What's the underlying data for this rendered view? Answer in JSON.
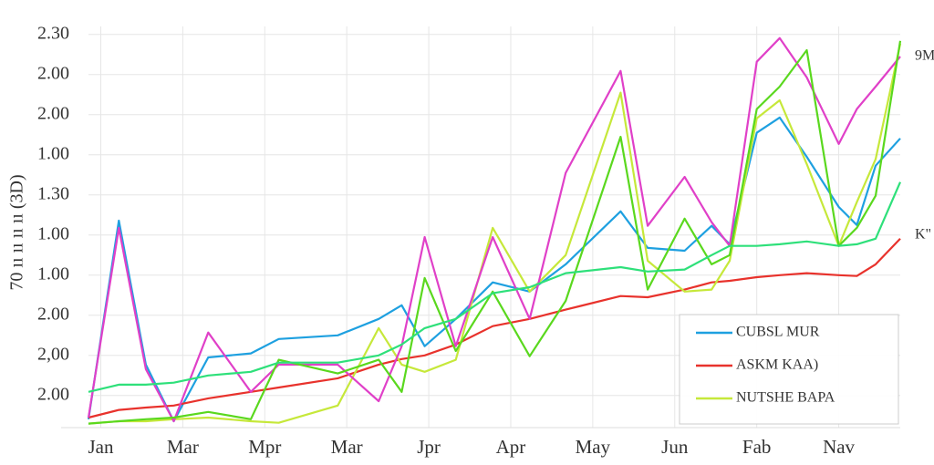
{
  "chart_data": {
    "type": "line",
    "y_label": "70 ıı ıı ıı ıı (3D)",
    "annotations": [
      "9M",
      "K\""
    ],
    "categories": [
      "Jan",
      "Mar",
      "Mpr",
      "Mar",
      "Jpr",
      "Apr",
      "May",
      "Jun",
      "Fab",
      "Nav"
    ],
    "xlim": [
      -0.15,
      9.75
    ],
    "x": [
      -0.15,
      0.22,
      0.55,
      0.89,
      1.31,
      1.83,
      2.17,
      2.89,
      3.39,
      3.67,
      3.95,
      4.33,
      4.78,
      5.23,
      5.67,
      6.34,
      6.67,
      7.12,
      7.45,
      7.67,
      8.0,
      8.28,
      8.61,
      9.0,
      9.22,
      9.45,
      9.75
    ],
    "ylim": [
      -0.8,
      9.2
    ],
    "yticks": [
      {
        "value": 9,
        "label": "2.30"
      },
      {
        "value": 8,
        "label": "2.00"
      },
      {
        "value": 7,
        "label": "2.00"
      },
      {
        "value": 6,
        "label": "1.00"
      },
      {
        "value": 5,
        "label": "1.30"
      },
      {
        "value": 4,
        "label": "1.00"
      },
      {
        "value": 3,
        "label": "1.00"
      },
      {
        "value": 2,
        "label": "2.00"
      },
      {
        "value": 1,
        "label": "2,00"
      },
      {
        "value": 0,
        "label": "2.00"
      }
    ],
    "grid": true,
    "legend": "lower right",
    "series": [
      {
        "name": "CUBSL MUR",
        "color": "#1ea0e0",
        "values": [
          -0.59,
          4.36,
          0.77,
          -0.64,
          0.95,
          1.05,
          1.41,
          1.5,
          1.91,
          2.25,
          1.23,
          1.91,
          2.82,
          2.59,
          3.27,
          4.59,
          3.68,
          3.61,
          4.23,
          3.77,
          6.55,
          6.93,
          5.95,
          4.7,
          4.25,
          5.73,
          6.41
        ]
      },
      {
        "name": "ASKM KAA)",
        "color": "#e8322c",
        "values": [
          -0.55,
          -0.36,
          -0.3,
          -0.25,
          -0.07,
          0.09,
          0.2,
          0.43,
          0.77,
          0.91,
          1.0,
          1.27,
          1.73,
          1.91,
          2.14,
          2.48,
          2.45,
          2.64,
          2.82,
          2.86,
          2.95,
          3.0,
          3.05,
          3.0,
          2.98,
          3.27,
          3.91
        ]
      },
      {
        "name": "NUTSHE BAPA",
        "color": "#c6e83a",
        "values": [
          -0.7,
          -0.64,
          -0.64,
          -0.59,
          -0.55,
          -0.64,
          -0.68,
          -0.25,
          1.68,
          0.77,
          0.59,
          0.89,
          4.18,
          2.59,
          3.5,
          7.55,
          3.36,
          2.59,
          2.64,
          3.36,
          6.91,
          7.36,
          5.77,
          3.73,
          4.82,
          5.89,
          8.77
        ]
      },
      {
        "color": "#e040c8",
        "values": [
          -0.55,
          4.18,
          0.66,
          -0.64,
          1.57,
          0.09,
          0.77,
          0.77,
          -0.14,
          1.23,
          3.95,
          1.23,
          3.95,
          1.91,
          5.55,
          8.09,
          4.23,
          5.45,
          4.32,
          3.73,
          8.32,
          8.91,
          7.93,
          6.27,
          7.14,
          7.7,
          8.45
        ]
      },
      {
        "color": "#5ad81e",
        "values": [
          -0.7,
          -0.64,
          -0.59,
          -0.55,
          -0.41,
          -0.59,
          0.89,
          0.55,
          0.89,
          0.09,
          2.93,
          1.11,
          2.59,
          0.98,
          2.36,
          6.45,
          2.64,
          4.41,
          3.27,
          3.5,
          7.14,
          7.7,
          8.61,
          3.73,
          4.18,
          4.98,
          8.84
        ]
      },
      {
        "color": "#2ee07a",
        "values": [
          0.09,
          0.27,
          0.27,
          0.32,
          0.5,
          0.59,
          0.82,
          0.82,
          1.0,
          1.27,
          1.68,
          1.91,
          2.55,
          2.7,
          3.05,
          3.2,
          3.09,
          3.14,
          3.5,
          3.73,
          3.73,
          3.77,
          3.84,
          3.73,
          3.77,
          3.91,
          5.32
        ]
      }
    ]
  }
}
